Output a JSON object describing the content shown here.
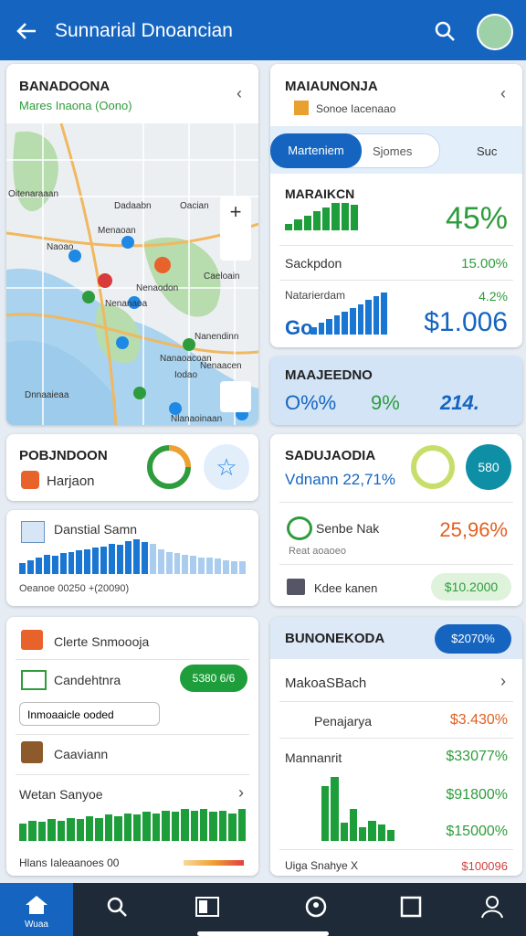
{
  "header": {
    "title": "Sunnarial Dnoancian"
  },
  "left": {
    "map_card": {
      "title": "BANADOONA",
      "subtitle": "Mares Inaona (Oono)",
      "labels": [
        "Oitenaraaan",
        "Dadaabn",
        "Oacian",
        "Naoao",
        "Menaoan",
        "Nenaodon",
        "Caeloain",
        "Nenanaoa",
        "Nanendinn",
        "Nenaacen",
        "Nanaoacoan",
        "Iodao",
        "Dnnaaieaa",
        "Nlanaoinaan"
      ]
    },
    "poi_card": {
      "title": "POBJNDOON",
      "subtitle": "Harjaon"
    },
    "stats_card": {
      "title": "Danstial Samn",
      "footer": "Oeanoe 00250 +(20090)",
      "bars": [
        8,
        10,
        12,
        14,
        13,
        15,
        16,
        17,
        18,
        19,
        20,
        22,
        21,
        24,
        25,
        23,
        22,
        18,
        16,
        15,
        14,
        13,
        12,
        12,
        11,
        10,
        9,
        9
      ]
    },
    "list_card": {
      "title": "Clerte Snmoooja",
      "item1": "Candehtnra",
      "button": "5380 6/6",
      "input": "Inmoaaicle ooded",
      "item2": "Caaviann",
      "item3": "Wetan Sanyoe",
      "footer": "Hlans Ialeaanoes 00",
      "bars": [
        12,
        14,
        13,
        15,
        14,
        16,
        15,
        17,
        16,
        18,
        17,
        19,
        18,
        20,
        19,
        21,
        20,
        22,
        21,
        22,
        20,
        21,
        19,
        22
      ]
    }
  },
  "right": {
    "summary_card": {
      "title": "MAIAUNONJA",
      "subtitle": "Sonoe Iacenaao",
      "tabs": [
        "Marteniem",
        "Sjomes",
        "Suc"
      ],
      "row1_label": "MARAIKCN",
      "row1_value": "45%",
      "row2_label": "Sackpdon",
      "row2_value": "15.00%",
      "row3_label": "Natarierdam",
      "row3_value": "4.2%",
      "row4_label": "Go",
      "row4_value": "$1.006",
      "bars1": [
        6,
        10,
        14,
        18,
        22,
        26,
        26,
        24
      ],
      "bars2": [
        8,
        12,
        16,
        20,
        24,
        28,
        32,
        36,
        40,
        44
      ]
    },
    "kpi_card": {
      "title": "MAAJEEDNO",
      "kpis": [
        "O%%",
        "9%",
        "214."
      ]
    },
    "detail_card": {
      "title": "SADUJAODIA",
      "subtitle": "Vdnann 22,71%",
      "badge": "580",
      "row1_label": "Senbe Nak",
      "row1_value": "25,96%",
      "row1_note": "Reat aoaoeo",
      "row2_label": "Kdee kanen",
      "row2_value": "$10.2000"
    },
    "finance_card": {
      "title": "BUNONEKODA",
      "badge": "$2070%",
      "row0": "MakoaSBach",
      "row1_label": "Penajarya",
      "row1_value": "$3.430%",
      "row2_label": "Mannanrit",
      "row2_value": "$33077%",
      "row3_value": "$91800%",
      "row4_value": "$15000%",
      "row5_label": "Uiga Snahye X",
      "row5_value": "$100096",
      "bars": [
        60,
        70,
        20,
        35,
        15,
        22,
        18,
        12
      ]
    }
  },
  "nav": {
    "home": "Wuaa"
  }
}
